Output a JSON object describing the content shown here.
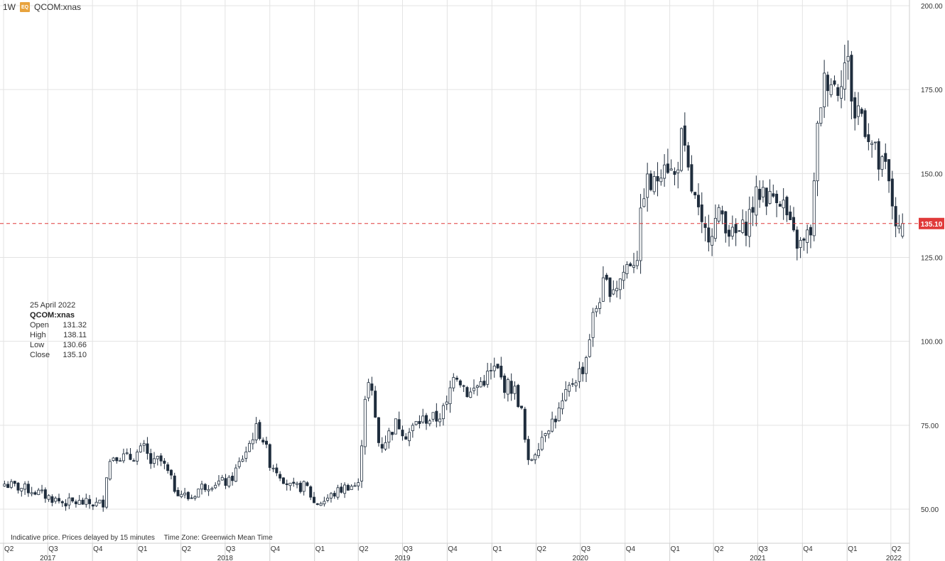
{
  "header": {
    "interval": "1W",
    "badge": "EQ",
    "symbol": "QCOM:xnas"
  },
  "info_panel": {
    "date": "25 April 2022",
    "symbol": "QCOM:xnas",
    "open_label": "Open",
    "open": "131.32",
    "high_label": "High",
    "high": "138.11",
    "low_label": "Low",
    "low": "130.66",
    "close_label": "Close",
    "close": "135.10"
  },
  "footer": {
    "disclaimer": "Indicative price. Prices delayed by 15 minutes",
    "timezone": "Time Zone: Greenwich Mean Time"
  },
  "colors": {
    "up_candle": "#ffffff",
    "down_candle": "#1f2d3d",
    "candle_border": "#1f2d3d",
    "last_price": "#e03a3a",
    "grid": "#e3e3e3"
  },
  "chart_data": {
    "type": "candlestick",
    "interval": "1W",
    "ylim": [
      40,
      200
    ],
    "y_ticks": [
      "50.00",
      "75.00",
      "100.00",
      "125.00",
      "150.00",
      "175.00",
      "200.00"
    ],
    "last_price": 135.1,
    "last_price_label": "135.10",
    "grid": true,
    "quarter_ticks": [
      "Q2",
      "Q3",
      "Q4",
      "Q1",
      "Q2",
      "Q3",
      "Q4",
      "Q1",
      "Q2",
      "Q3",
      "Q4",
      "Q1",
      "Q2",
      "Q3",
      "Q4",
      "Q1",
      "Q2",
      "Q3",
      "Q4",
      "Q1",
      "Q2"
    ],
    "years": [
      "2017",
      "2018",
      "2019",
      "2020",
      "2021",
      "2022"
    ],
    "close_anchors": [
      [
        "2017-04-03",
        57.5
      ],
      [
        "2017-05-01",
        56.5
      ],
      [
        "2017-06-01",
        55.5
      ],
      [
        "2017-06-26",
        54.0
      ],
      [
        "2017-08-01",
        52.0
      ],
      [
        "2017-09-01",
        52.0
      ],
      [
        "2017-10-09",
        51.5
      ],
      [
        "2017-10-23",
        52.0
      ],
      [
        "2017-11-01",
        63.0
      ],
      [
        "2017-11-15",
        66.5
      ],
      [
        "2017-12-15",
        65.0
      ],
      [
        "2018-01-15",
        68.0
      ],
      [
        "2018-02-01",
        63.0
      ],
      [
        "2018-02-15",
        65.0
      ],
      [
        "2018-03-01",
        62.0
      ],
      [
        "2018-03-20",
        56.0
      ],
      [
        "2018-04-20",
        53.0
      ],
      [
        "2018-05-10",
        56.5
      ],
      [
        "2018-06-10",
        58.0
      ],
      [
        "2018-07-10",
        58.0
      ],
      [
        "2018-08-01",
        64.0
      ],
      [
        "2018-08-20",
        69.5
      ],
      [
        "2018-09-01",
        74.0
      ],
      [
        "2018-09-15",
        72.0
      ],
      [
        "2018-10-01",
        64.0
      ],
      [
        "2018-10-20",
        61.0
      ],
      [
        "2018-11-15",
        56.0
      ],
      [
        "2018-12-15",
        57.0
      ],
      [
        "2019-01-01",
        51.5
      ],
      [
        "2019-01-20",
        52.5
      ],
      [
        "2019-02-15",
        55.0
      ],
      [
        "2019-03-10",
        57.0
      ],
      [
        "2019-04-01",
        57.0
      ],
      [
        "2019-04-15",
        84.0
      ],
      [
        "2019-04-25",
        88.0
      ],
      [
        "2019-05-15",
        68.0
      ],
      [
        "2019-06-01",
        72.0
      ],
      [
        "2019-06-20",
        76.0
      ],
      [
        "2019-07-10",
        72.0
      ],
      [
        "2019-08-01",
        76.0
      ],
      [
        "2019-08-20",
        77.0
      ],
      [
        "2019-09-10",
        77.0
      ],
      [
        "2019-10-01",
        81.0
      ],
      [
        "2019-10-15",
        92.0
      ],
      [
        "2019-11-15",
        84.0
      ],
      [
        "2019-12-10",
        88.0
      ],
      [
        "2020-01-10",
        92.0
      ],
      [
        "2020-01-25",
        87.0
      ],
      [
        "2020-02-15",
        86.0
      ],
      [
        "2020-03-01",
        80.0
      ],
      [
        "2020-03-15",
        63.0
      ],
      [
        "2020-04-01",
        68.0
      ],
      [
        "2020-04-20",
        74.0
      ],
      [
        "2020-05-15",
        78.0
      ],
      [
        "2020-06-15",
        88.0
      ],
      [
        "2020-07-10",
        93.0
      ],
      [
        "2020-07-25",
        106.0
      ],
      [
        "2020-08-15",
        116.0
      ],
      [
        "2020-09-15",
        117.0
      ],
      [
        "2020-10-10",
        124.0
      ],
      [
        "2020-10-25",
        125.0
      ],
      [
        "2020-11-10",
        147.0
      ],
      [
        "2020-12-01",
        146.0
      ],
      [
        "2020-12-20",
        156.0
      ],
      [
        "2021-01-10",
        148.0
      ],
      [
        "2021-01-25",
        160.0
      ],
      [
        "2021-02-10",
        148.0
      ],
      [
        "2021-02-25",
        140.0
      ],
      [
        "2021-03-10",
        131.0
      ],
      [
        "2021-04-01",
        135.0
      ],
      [
        "2021-04-20",
        138.0
      ],
      [
        "2021-05-10",
        131.0
      ],
      [
        "2021-06-01",
        133.0
      ],
      [
        "2021-06-20",
        140.0
      ],
      [
        "2021-07-10",
        146.0
      ],
      [
        "2021-07-25",
        142.0
      ],
      [
        "2021-08-10",
        145.0
      ],
      [
        "2021-08-25",
        140.0
      ],
      [
        "2021-09-10",
        131.0
      ],
      [
        "2021-10-01",
        128.0
      ],
      [
        "2021-10-20",
        134.0
      ],
      [
        "2021-11-01",
        162.0
      ],
      [
        "2021-11-10",
        175.0
      ],
      [
        "2021-11-25",
        180.0
      ],
      [
        "2021-12-10",
        175.0
      ],
      [
        "2021-12-25",
        183.0
      ],
      [
        "2022-01-05",
        182.0
      ],
      [
        "2022-01-15",
        166.0
      ],
      [
        "2022-01-25",
        170.0
      ],
      [
        "2022-02-10",
        164.0
      ],
      [
        "2022-02-25",
        157.0
      ],
      [
        "2022-03-10",
        151.0
      ],
      [
        "2022-03-20",
        152.0
      ],
      [
        "2022-04-01",
        143.0
      ],
      [
        "2022-04-10",
        137.0
      ],
      [
        "2022-04-18",
        131.3
      ],
      [
        "2022-04-25",
        135.1
      ]
    ],
    "last_candle": {
      "date": "2022-04-25",
      "open": 131.32,
      "high": 138.11,
      "low": 130.66,
      "close": 135.1
    }
  }
}
